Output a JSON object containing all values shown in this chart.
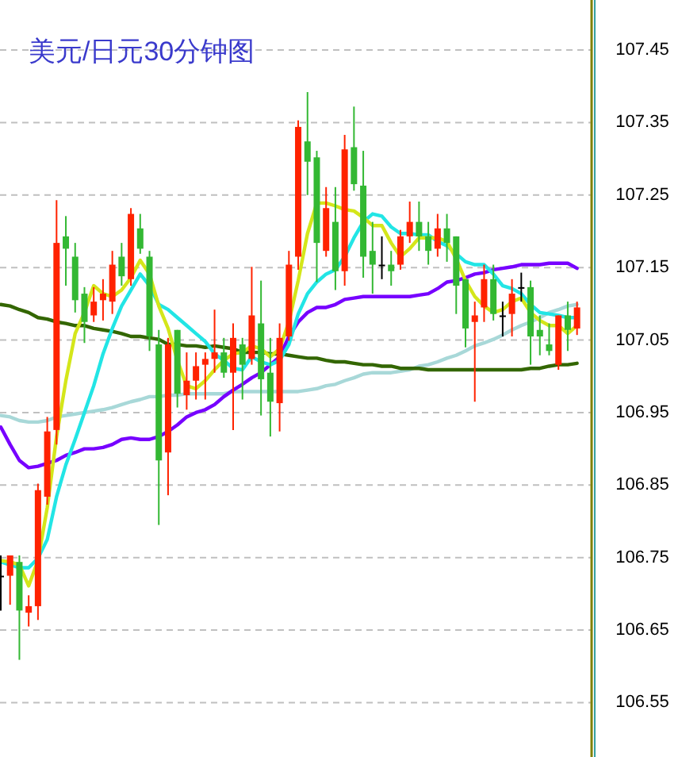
{
  "chart_data": {
    "type": "candlestick",
    "title": "美元/日元30分钟图",
    "categories": [
      null,
      null,
      null,
      null,
      null,
      null,
      null,
      null,
      null,
      null,
      null,
      null,
      null,
      null,
      null,
      null,
      null,
      null,
      null,
      null,
      null,
      null,
      null,
      null,
      null,
      null,
      null,
      null,
      null,
      null,
      null,
      null,
      null,
      null,
      null,
      null,
      null,
      null,
      null,
      null,
      null,
      null,
      null,
      null,
      null,
      null,
      null,
      null,
      null,
      null,
      null,
      null,
      null,
      null,
      null,
      null,
      null,
      null,
      null,
      null,
      null,
      null,
      null
    ],
    "ohlc": [
      [
        106.725,
        106.753,
        106.677,
        106.725
      ],
      [
        106.725,
        106.753,
        106.685,
        106.753
      ],
      [
        106.744,
        106.753,
        106.609,
        106.677
      ],
      [
        106.674,
        106.698,
        106.655,
        106.683
      ],
      [
        106.683,
        106.852,
        106.664,
        106.843
      ],
      [
        106.834,
        106.944,
        106.823,
        106.924
      ],
      [
        106.926,
        107.243,
        106.906,
        107.184
      ],
      [
        107.193,
        107.221,
        107.125,
        107.176
      ],
      [
        107.165,
        107.184,
        107.088,
        107.105
      ],
      [
        107.114,
        107.123,
        107.046,
        107.075
      ],
      [
        107.084,
        107.123,
        107.075,
        107.103
      ],
      [
        107.105,
        107.134,
        107.077,
        107.114
      ],
      [
        107.103,
        107.173,
        107.086,
        107.154
      ],
      [
        107.165,
        107.184,
        107.125,
        107.138
      ],
      [
        107.134,
        107.232,
        107.125,
        107.224
      ],
      [
        107.204,
        107.224,
        107.169,
        107.176
      ],
      [
        107.165,
        107.173,
        107.035,
        107.055
      ],
      [
        107.044,
        107.064,
        106.795,
        106.884
      ],
      [
        106.895,
        107.053,
        106.836,
        107.044
      ],
      [
        107.064,
        107.064,
        106.957,
        106.976
      ],
      [
        106.974,
        107.033,
        106.954,
        106.994
      ],
      [
        106.994,
        107.033,
        106.968,
        107.014
      ],
      [
        107.016,
        107.033,
        106.968,
        107.024
      ],
      [
        107.024,
        107.092,
        107.005,
        107.033
      ],
      [
        107.033,
        107.053,
        106.998,
        107.005
      ],
      [
        107.005,
        107.073,
        106.926,
        107.053
      ],
      [
        107.044,
        107.053,
        106.968,
        107.016
      ],
      [
        107.024,
        107.151,
        107.016,
        107.084
      ],
      [
        107.073,
        107.132,
        106.946,
        106.996
      ],
      [
        107.005,
        107.053,
        106.917,
        106.965
      ],
      [
        106.963,
        107.073,
        106.924,
        107.053
      ],
      [
        107.055,
        107.173,
        107.049,
        107.154
      ],
      [
        107.165,
        107.353,
        107.147,
        107.344
      ],
      [
        107.324,
        107.392,
        107.25,
        107.296
      ],
      [
        107.302,
        107.311,
        107.13,
        107.184
      ],
      [
        107.173,
        107.261,
        107.165,
        107.232
      ],
      [
        107.213,
        107.261,
        107.119,
        107.145
      ],
      [
        107.145,
        107.333,
        107.125,
        107.313
      ],
      [
        107.316,
        107.372,
        107.256,
        107.265
      ],
      [
        107.263,
        107.311,
        107.136,
        107.165
      ],
      [
        107.173,
        107.213,
        107.114,
        107.154
      ],
      [
        107.154,
        107.193,
        107.134,
        107.154
      ],
      [
        107.154,
        107.173,
        107.125,
        107.145
      ],
      [
        107.154,
        107.202,
        107.147,
        107.193
      ],
      [
        107.193,
        107.241,
        107.184,
        107.213
      ],
      [
        107.213,
        107.241,
        107.173,
        107.193
      ],
      [
        107.193,
        107.213,
        107.154,
        107.173
      ],
      [
        107.176,
        107.224,
        107.165,
        107.204
      ],
      [
        107.204,
        107.224,
        107.158,
        107.184
      ],
      [
        107.193,
        107.193,
        107.086,
        107.125
      ],
      [
        107.134,
        107.134,
        107.04,
        107.066
      ],
      [
        107.075,
        107.103,
        106.965,
        107.084
      ],
      [
        107.095,
        107.154,
        107.075,
        107.134
      ],
      [
        107.134,
        107.154,
        107.077,
        107.086
      ],
      [
        107.084,
        107.103,
        107.055,
        107.084
      ],
      [
        107.086,
        107.134,
        107.055,
        107.114
      ],
      [
        107.123,
        107.143,
        107.103,
        107.123
      ],
      [
        107.123,
        107.132,
        107.016,
        107.055
      ],
      [
        107.064,
        107.084,
        107.029,
        107.055
      ],
      [
        107.044,
        107.073,
        107.029,
        107.035
      ],
      [
        107.016,
        107.084,
        107.009,
        107.084
      ],
      [
        107.084,
        107.103,
        107.035,
        107.064
      ],
      [
        107.066,
        107.103,
        107.057,
        107.095
      ]
    ],
    "colors": [
      "#000000",
      "#ff2200",
      "#33b833",
      "#ff2200",
      "#ff2200",
      "#ff2200",
      "#ff2200",
      "#33b833",
      "#33b833",
      "#33b833",
      "#ff2200",
      "#ff2200",
      "#ff2200",
      "#33b833",
      "#ff2200",
      "#33b833",
      "#33b833",
      "#33b833",
      "#ff2200",
      "#33b833",
      "#ff2200",
      "#ff2200",
      "#ff2200",
      "#ff2200",
      "#33b833",
      "#ff2200",
      "#33b833",
      "#ff2200",
      "#33b833",
      "#33b833",
      "#ff2200",
      "#ff2200",
      "#ff2200",
      "#33b833",
      "#33b833",
      "#ff2200",
      "#33b833",
      "#ff2200",
      "#33b833",
      "#33b833",
      "#33b833",
      "#000000",
      "#33b833",
      "#ff2200",
      "#ff2200",
      "#33b833",
      "#33b833",
      "#ff2200",
      "#33b833",
      "#33b833",
      "#33b833",
      "#ff2200",
      "#ff2200",
      "#33b833",
      "#000000",
      "#ff2200",
      "#000000",
      "#33b833",
      "#33b833",
      "#33b833",
      "#ff2200",
      "#33b833",
      "#ff2200"
    ],
    "series": [
      {
        "type": "line",
        "color": "#a8d8d8",
        "values": [
          106.946,
          106.944,
          106.939,
          106.937,
          106.937,
          106.939,
          106.944,
          106.946,
          106.948,
          106.95,
          106.952,
          106.954,
          106.957,
          106.961,
          106.965,
          106.968,
          106.972,
          106.972,
          106.974,
          106.974,
          106.976,
          106.976,
          106.976,
          106.976,
          106.976,
          106.979,
          106.979,
          106.979,
          106.979,
          106.979,
          106.979,
          106.979,
          106.979,
          106.981,
          106.983,
          106.987,
          106.989,
          106.994,
          106.998,
          107.003,
          107.005,
          107.005,
          107.005,
          107.007,
          107.009,
          107.014,
          107.016,
          107.02,
          107.025,
          107.029,
          107.035,
          107.042,
          107.046,
          107.051,
          107.057,
          107.064,
          107.07,
          107.075,
          107.081,
          107.088,
          107.092,
          107.097,
          107.099
        ]
      },
      {
        "type": "line",
        "color": "#336600",
        "values": [
          107.099,
          107.097,
          107.092,
          107.088,
          107.081,
          107.079,
          107.075,
          107.073,
          107.07,
          107.07,
          107.066,
          107.064,
          107.062,
          107.059,
          107.055,
          107.055,
          107.053,
          107.051,
          107.044,
          107.044,
          107.042,
          107.042,
          107.04,
          107.042,
          107.04,
          107.038,
          107.033,
          107.033,
          107.033,
          107.031,
          107.031,
          107.029,
          107.027,
          107.025,
          107.025,
          107.022,
          107.02,
          107.02,
          107.018,
          107.016,
          107.016,
          107.014,
          107.014,
          107.011,
          107.011,
          107.011,
          107.009,
          107.009,
          107.009,
          107.009,
          107.009,
          107.009,
          107.009,
          107.009,
          107.009,
          107.009,
          107.009,
          107.011,
          107.011,
          107.014,
          107.016,
          107.016,
          107.018
        ]
      },
      {
        "type": "line",
        "color": "#7700ff",
        "values": [
          106.93,
          106.906,
          106.884,
          106.874,
          106.876,
          106.88,
          106.884,
          106.891,
          106.895,
          106.9,
          106.9,
          106.902,
          106.906,
          106.913,
          106.915,
          106.913,
          106.913,
          106.917,
          106.924,
          106.933,
          106.944,
          106.95,
          106.954,
          106.961,
          106.972,
          106.981,
          106.989,
          106.998,
          107.005,
          107.016,
          107.027,
          107.055,
          107.075,
          107.088,
          107.095,
          107.095,
          107.099,
          107.106,
          107.108,
          107.11,
          107.11,
          107.11,
          107.11,
          107.11,
          107.11,
          107.112,
          107.114,
          107.121,
          107.13,
          107.132,
          107.136,
          107.141,
          107.143,
          107.147,
          107.149,
          107.151,
          107.154,
          107.154,
          107.154,
          107.156,
          107.156,
          107.156,
          107.149
        ]
      },
      {
        "type": "line",
        "color": "#22e5e5",
        "values": [
          106.744,
          106.74,
          106.736,
          106.736,
          106.749,
          106.775,
          106.834,
          106.878,
          106.913,
          106.95,
          106.987,
          107.031,
          107.066,
          107.097,
          107.119,
          107.141,
          107.125,
          107.099,
          107.092,
          107.081,
          107.07,
          107.059,
          107.048,
          107.031,
          107.022,
          107.011,
          107.009,
          107.027,
          107.02,
          107.016,
          107.022,
          107.044,
          107.086,
          107.114,
          107.13,
          107.141,
          107.147,
          107.165,
          107.191,
          107.213,
          107.224,
          107.221,
          107.206,
          107.197,
          107.197,
          107.195,
          107.195,
          107.186,
          107.18,
          107.169,
          107.158,
          107.154,
          107.154,
          107.141,
          107.125,
          107.121,
          107.114,
          107.099,
          107.088,
          107.086,
          107.084,
          107.081,
          107.081
        ]
      },
      {
        "type": "line",
        "color": "#d4e61a",
        "values": [
          106.746,
          106.744,
          106.74,
          106.711,
          106.746,
          106.819,
          106.917,
          106.994,
          107.059,
          107.088,
          107.125,
          107.114,
          107.11,
          107.119,
          107.136,
          107.16,
          107.141,
          107.097,
          107.066,
          107.022,
          106.987,
          106.983,
          106.994,
          107.009,
          107.022,
          107.031,
          107.033,
          107.042,
          107.038,
          107.027,
          107.038,
          107.075,
          107.132,
          107.197,
          107.239,
          107.239,
          107.235,
          107.23,
          107.228,
          107.219,
          107.208,
          107.208,
          107.184,
          107.165,
          107.176,
          107.191,
          107.191,
          107.191,
          107.186,
          107.162,
          107.132,
          107.11,
          107.097,
          107.088,
          107.092,
          107.103,
          107.108,
          107.088,
          107.077,
          107.07,
          107.07,
          107.059,
          107.07
        ]
      }
    ],
    "ylim": [
      106.475,
      107.519
    ],
    "yticks": [
      106.55,
      106.65,
      106.75,
      106.85,
      106.95,
      107.05,
      107.15,
      107.25,
      107.35,
      107.45
    ],
    "grid": "y",
    "tick_labels": "y"
  }
}
